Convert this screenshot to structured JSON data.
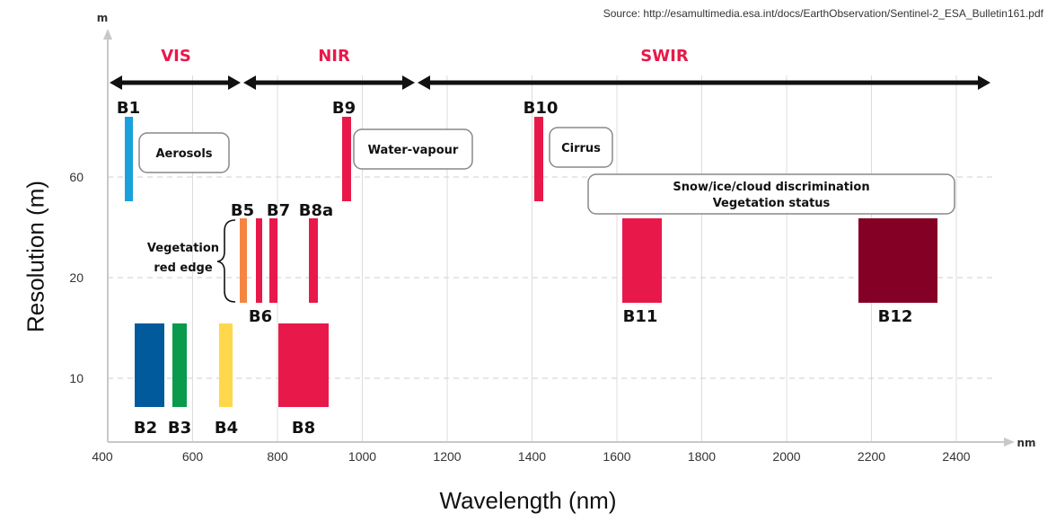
{
  "source_text": "Source: http://esamultimedia.esa.int/docs/EarthObservation/Sentinel-2_ESA_Bulletin161.pdf",
  "chart_data": {
    "type": "bar",
    "xlabel": "Wavelength (nm)",
    "ylabel": "Resolution (m)",
    "x_unit": "nm",
    "y_unit": "m",
    "xlim": [
      400,
      2500
    ],
    "x_ticks": [
      "400",
      "600",
      "800",
      "1000",
      "1200",
      "1400",
      "1600",
      "1800",
      "2000",
      "2200",
      "2400"
    ],
    "y_ticks": [
      "10",
      "20",
      "60"
    ],
    "grid": true,
    "regions": [
      {
        "name": "VIS",
        "from": 400,
        "to": 700
      },
      {
        "name": "NIR",
        "from": 700,
        "to": 1100
      },
      {
        "name": "SWIR",
        "from": 1100,
        "to": 2500
      }
    ],
    "bands": [
      {
        "name": "B1",
        "center_nm": 443,
        "width_nm": 20,
        "resolution_m": 60,
        "color": "#1aa0db"
      },
      {
        "name": "B2",
        "center_nm": 490,
        "width_nm": 65,
        "resolution_m": 10,
        "color": "#005a9c"
      },
      {
        "name": "B3",
        "center_nm": 560,
        "width_nm": 35,
        "resolution_m": 10,
        "color": "#0a9a4e"
      },
      {
        "name": "B4",
        "center_nm": 665,
        "width_nm": 30,
        "resolution_m": 10,
        "color": "#ffd74a"
      },
      {
        "name": "B5",
        "center_nm": 705,
        "width_nm": 15,
        "resolution_m": 20,
        "color": "#f58642"
      },
      {
        "name": "B6",
        "center_nm": 740,
        "width_nm": 15,
        "resolution_m": 20,
        "color": "#e8194a"
      },
      {
        "name": "B7",
        "center_nm": 783,
        "width_nm": 20,
        "resolution_m": 20,
        "color": "#e8194a"
      },
      {
        "name": "B8",
        "center_nm": 842,
        "width_nm": 115,
        "resolution_m": 10,
        "color": "#e8194a"
      },
      {
        "name": "B8a",
        "center_nm": 865,
        "width_nm": 20,
        "resolution_m": 20,
        "color": "#e8194a"
      },
      {
        "name": "B9",
        "center_nm": 945,
        "width_nm": 20,
        "resolution_m": 60,
        "color": "#e8194a"
      },
      {
        "name": "B10",
        "center_nm": 1375,
        "width_nm": 20,
        "resolution_m": 60,
        "color": "#e8194a"
      },
      {
        "name": "B11",
        "center_nm": 1610,
        "width_nm": 90,
        "resolution_m": 20,
        "color": "#e8194a"
      },
      {
        "name": "B12",
        "center_nm": 2190,
        "width_nm": 180,
        "resolution_m": 20,
        "color": "#850025"
      }
    ],
    "annotations": [
      {
        "text": "Aerosols",
        "lines": [
          "Aerosols"
        ]
      },
      {
        "text": "Water-vapour",
        "lines": [
          "Water-vapour"
        ]
      },
      {
        "text": "Cirrus",
        "lines": [
          "Cirrus"
        ]
      },
      {
        "text": "Snow/ice/cloud discrimination Vegetation status",
        "lines": [
          "Snow/ice/cloud discrimination",
          "Vegetation status"
        ]
      },
      {
        "text": "Vegetation red edge",
        "lines": [
          "Vegetation",
          "red edge"
        ]
      }
    ]
  }
}
